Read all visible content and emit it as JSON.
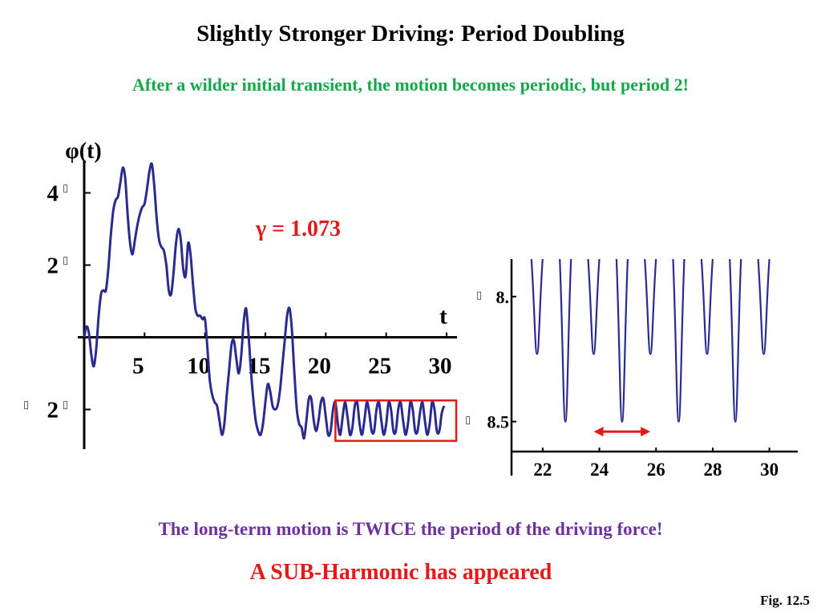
{
  "slide": {
    "title": "Slightly Stronger Driving: Period Doubling",
    "subtitle": "After a wilder initial transient, the motion becomes periodic, but period 2!",
    "bottom_line_1": "The long-term motion is TWICE the period of the driving force!",
    "bottom_line_2": "A SUB-Harmonic has appeared",
    "figure_label": "Fig. 12.5",
    "tick_glyph": "▯"
  },
  "colors": {
    "curve": "#2b2b8f",
    "axis": "#000000",
    "highlight": "#e21a1a",
    "subtitle": "#14a84a",
    "bottom_line_1": "#7030a0",
    "bottom_line_2": "#e21a1a",
    "annotation": "#e21a1a"
  },
  "chart_data": [
    {
      "type": "line",
      "ylabel": "φ(t)",
      "xlabel": "t",
      "annotation": "γ = 1.073",
      "xlim": [
        0,
        30.2
      ],
      "ylim": [
        -3.1,
        4.9
      ],
      "x_ticks": [
        5,
        10,
        15,
        20,
        25,
        30
      ],
      "x_tick_labels": [
        "5",
        "10",
        "15",
        "20",
        "25",
        "30"
      ],
      "y_ticks": [
        4,
        2,
        -2
      ],
      "y_tick_labels": [
        "4",
        "2",
        "2"
      ],
      "highlight_box": {
        "x0": 20.8,
        "x1": 30.8,
        "y0": -2.87,
        "y1": -1.75
      },
      "series": [
        {
          "x": [
            0,
            0.2,
            0.4,
            0.6,
            0.8,
            1.0,
            1.2,
            1.4,
            1.6,
            1.8,
            2.0,
            2.2,
            2.4,
            2.6,
            2.8,
            3.0,
            3.2,
            3.4,
            3.6,
            3.8,
            4.0,
            4.2,
            4.4,
            4.6,
            4.8,
            5.0,
            5.2,
            5.4,
            5.6,
            5.8,
            6.0,
            6.2,
            6.4,
            6.6,
            6.8,
            7.0,
            7.2,
            7.4,
            7.6,
            7.8,
            8.0,
            8.2,
            8.4,
            8.6,
            8.8,
            9.0,
            9.2,
            9.4,
            9.6,
            9.8,
            10.0,
            10.2,
            10.4,
            10.6,
            10.8,
            11.0,
            11.2,
            11.4,
            11.6,
            11.8,
            12.0,
            12.2,
            12.4,
            12.6,
            12.8,
            13.0,
            13.2,
            13.4,
            13.6,
            13.8,
            14.0,
            14.2,
            14.4,
            14.6,
            14.8,
            15.0,
            15.2,
            15.4,
            15.6,
            15.8,
            16.0,
            16.2,
            16.4,
            16.6,
            16.8,
            17.0,
            17.2,
            17.4,
            17.6,
            17.8,
            18.0,
            18.2,
            18.4,
            18.6,
            18.8,
            19.0,
            19.2,
            19.4,
            19.6,
            19.8,
            20.0,
            20.2,
            20.4,
            20.6,
            20.8,
            21.0,
            21.2,
            21.4,
            21.6,
            21.8,
            22.0,
            22.2,
            22.4,
            22.6,
            22.8,
            23.0,
            23.2,
            23.4,
            23.6,
            23.8,
            24.0,
            24.2,
            24.4,
            24.6,
            24.8,
            25.0,
            25.2,
            25.4,
            25.6,
            25.8,
            26.0,
            26.2,
            26.4,
            26.6,
            26.8,
            27.0,
            27.2,
            27.4,
            27.6,
            27.8,
            28.0,
            28.2,
            28.4,
            28.6,
            28.8,
            29.0,
            29.2,
            29.4,
            29.6,
            29.8
          ],
          "y": [
            0.0,
            0.3,
            0.1,
            -0.5,
            -0.8,
            -0.3,
            0.6,
            1.2,
            1.3,
            1.3,
            1.9,
            2.8,
            3.5,
            3.8,
            3.9,
            4.3,
            4.7,
            4.4,
            3.4,
            2.6,
            2.3,
            2.7,
            3.1,
            3.4,
            3.6,
            3.7,
            4.1,
            4.6,
            4.8,
            4.2,
            3.3,
            2.7,
            2.5,
            2.4,
            2.0,
            1.3,
            1.2,
            1.8,
            2.6,
            3.0,
            2.7,
            1.9,
            1.7,
            2.6,
            2.3,
            1.5,
            0.8,
            0.6,
            0.6,
            0.5,
            0.5,
            -0.3,
            -1.2,
            -1.6,
            -1.8,
            -1.9,
            -2.3,
            -2.7,
            -2.4,
            -1.6,
            -0.9,
            -0.2,
            -0.1,
            -0.6,
            -1.0,
            -0.5,
            0.4,
            0.8,
            0.1,
            -0.9,
            -1.7,
            -2.3,
            -2.6,
            -2.7,
            -2.4,
            -1.8,
            -1.3,
            -1.5,
            -1.9,
            -2.0,
            -1.9,
            -1.5,
            -0.8,
            -0.1,
            0.6,
            0.8,
            0.2,
            -1.0,
            -2.0,
            -2.4,
            -2.5,
            -2.8,
            -2.3,
            -1.7,
            -1.7,
            -2.3,
            -2.6,
            -2.3,
            -1.8,
            -1.7,
            -2.2,
            -2.7,
            -2.6,
            -2.0,
            -1.8,
            -2.4,
            -2.7,
            -2.2,
            -1.8,
            -2.2,
            -2.7,
            -2.5,
            -1.9,
            -1.8,
            -2.4,
            -2.7,
            -2.3,
            -1.8,
            -2.1,
            -2.6,
            -2.6,
            -2.0,
            -1.8,
            -2.3,
            -2.7,
            -2.4,
            -1.8,
            -2.0,
            -2.6,
            -2.6,
            -2.0,
            -1.8,
            -2.3,
            -2.7,
            -2.4,
            -1.8,
            -2.0,
            -2.6,
            -2.6,
            -2.1,
            -1.8,
            -2.3,
            -2.7,
            -2.4,
            -1.8,
            -2.0,
            -2.6,
            -2.6,
            -2.1,
            -1.9
          ]
        }
      ]
    },
    {
      "type": "line",
      "xlim": [
        20.9,
        31.0
      ],
      "ylim": [
        -8.62,
        -7.85
      ],
      "x_ticks": [
        22,
        24,
        26,
        28,
        30
      ],
      "x_tick_labels": [
        "22",
        "24",
        "26",
        "28",
        "30"
      ],
      "y_ticks": [
        -8.0,
        -8.5
      ],
      "y_tick_labels": [
        "8.",
        "8.5"
      ],
      "period_arrow": {
        "x0": 23.8,
        "x1": 25.8,
        "y": -8.54
      },
      "series": [
        {
          "minima": [
            {
              "t": 21.8,
              "y": -8.23
            },
            {
              "t": 22.8,
              "y": -8.5
            },
            {
              "t": 23.8,
              "y": -8.23
            },
            {
              "t": 24.8,
              "y": -8.5
            },
            {
              "t": 25.8,
              "y": -8.23
            },
            {
              "t": 26.8,
              "y": -8.5
            },
            {
              "t": 27.8,
              "y": -8.23
            },
            {
              "t": 28.8,
              "y": -8.5
            },
            {
              "t": 29.8,
              "y": -8.23
            }
          ]
        }
      ]
    }
  ]
}
